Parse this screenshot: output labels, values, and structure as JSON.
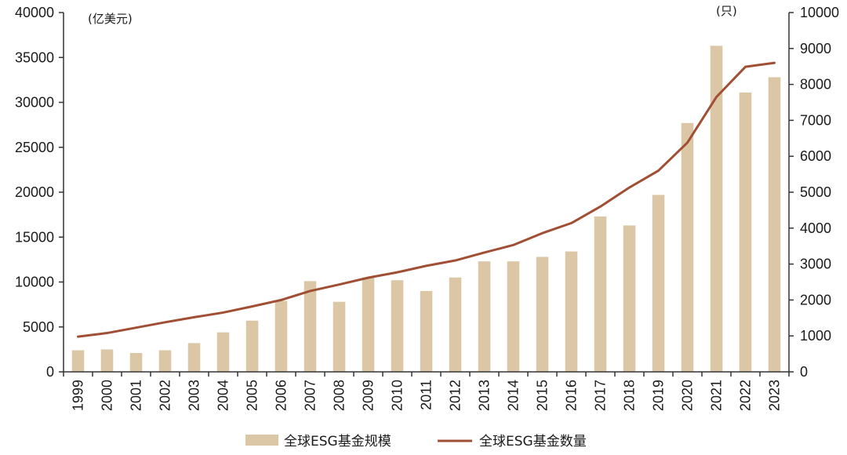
{
  "chart_data": {
    "type": "bar",
    "categories": [
      "1999",
      "2000",
      "2001",
      "2002",
      "2003",
      "2004",
      "2005",
      "2006",
      "2007",
      "2008",
      "2009",
      "2010",
      "2011",
      "2012",
      "2013",
      "2014",
      "2015",
      "2016",
      "2017",
      "2018",
      "2019",
      "2020",
      "2021",
      "2022",
      "2023"
    ],
    "left_unit": "(亿美元)",
    "right_unit": "(只)",
    "ylim_left": [
      0,
      40000
    ],
    "ylim_right": [
      0,
      10000
    ],
    "yticks_left": [
      "0",
      "5000",
      "10000",
      "15000",
      "20000",
      "25000",
      "30000",
      "35000",
      "40000"
    ],
    "yticks_right": [
      "0",
      "1000",
      "2000",
      "3000",
      "4000",
      "5000",
      "6000",
      "7000",
      "8000",
      "9000",
      "10000"
    ],
    "series": [
      {
        "name": "全球ESG基金规模",
        "type": "bar",
        "axis": "left",
        "color": "#dbc7a6",
        "values": [
          2400,
          2500,
          2100,
          2400,
          3200,
          4400,
          5700,
          7900,
          10100,
          7800,
          10500,
          10200,
          9000,
          10500,
          12300,
          12300,
          12800,
          13400,
          17300,
          16300,
          19700,
          27700,
          36300,
          31100,
          32800
        ]
      },
      {
        "name": "全球ESG基金数量",
        "type": "line",
        "axis": "right",
        "color": "#a14f34",
        "values": [
          980,
          1080,
          1230,
          1380,
          1520,
          1650,
          1820,
          2000,
          2250,
          2430,
          2620,
          2770,
          2950,
          3100,
          3320,
          3530,
          3860,
          4140,
          4600,
          5130,
          5600,
          6380,
          7650,
          8490,
          8600
        ]
      }
    ],
    "grid": false,
    "legend_position": "bottom"
  }
}
